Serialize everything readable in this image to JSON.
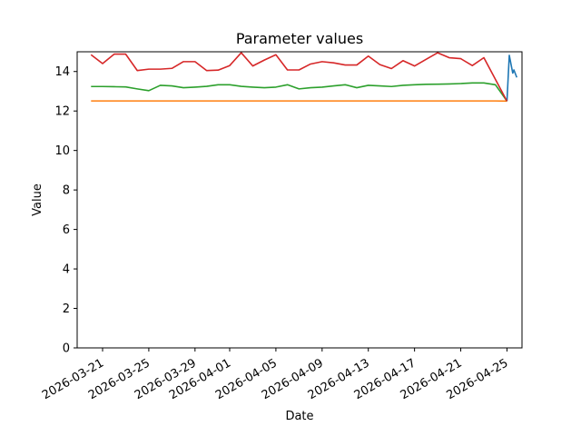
{
  "chart_data": {
    "type": "line",
    "title": "Parameter values",
    "xlabel": "Date",
    "ylabel": "Value",
    "grid": false,
    "legend": null,
    "ylim": [
      0,
      15.0
    ],
    "xlim_days_from_first_tick": [
      -2.2,
      36.3
    ],
    "y_ticks": [
      0,
      2,
      4,
      6,
      8,
      10,
      12,
      14
    ],
    "x_tick_labels": [
      "2026-03-21",
      "2026-03-25",
      "2026-03-29",
      "2026-04-01",
      "2026-04-05",
      "2026-04-09",
      "2026-04-13",
      "2026-04-17",
      "2026-04-21",
      "2026-04-25"
    ],
    "x_dates": [
      "2026-03-20",
      "2026-03-21",
      "2026-03-22",
      "2026-03-23",
      "2026-03-24",
      "2026-03-25",
      "2026-03-26",
      "2026-03-27",
      "2026-03-28",
      "2026-03-29",
      "2026-03-30",
      "2026-03-31",
      "2026-04-01",
      "2026-04-02",
      "2026-04-03",
      "2026-04-04",
      "2026-04-05",
      "2026-04-06",
      "2026-04-07",
      "2026-04-08",
      "2026-04-09",
      "2026-04-10",
      "2026-04-11",
      "2026-04-12",
      "2026-04-13",
      "2026-04-14",
      "2026-04-15",
      "2026-04-16",
      "2026-04-17",
      "2026-04-18",
      "2026-04-19",
      "2026-04-20",
      "2026-04-21",
      "2026-04-22",
      "2026-04-23",
      "2026-04-24",
      "2026-04-25"
    ],
    "series": [
      {
        "name": "blue",
        "color": "#1f77b4",
        "points": [
          [
            "2026-04-25T00:00",
            12.5
          ],
          [
            "2026-04-25T04:48",
            14.82
          ],
          [
            "2026-04-25T12:00",
            13.92
          ],
          [
            "2026-04-25T14:24",
            14.08
          ],
          [
            "2026-04-25T20:24",
            13.7
          ]
        ]
      },
      {
        "name": "orange",
        "color": "#ff7f0e",
        "values": [
          12.51,
          12.51,
          12.51,
          12.51,
          12.51,
          12.51,
          12.51,
          12.51,
          12.51,
          12.51,
          12.51,
          12.51,
          12.51,
          12.51,
          12.51,
          12.51,
          12.51,
          12.51,
          12.51,
          12.51,
          12.51,
          12.51,
          12.51,
          12.51,
          12.51,
          12.51,
          12.51,
          12.51,
          12.51,
          12.51,
          12.51,
          12.51,
          12.51,
          12.51,
          12.51,
          12.51,
          12.5
        ]
      },
      {
        "name": "green",
        "color": "#2ca02c",
        "values": [
          13.24,
          13.24,
          13.23,
          13.22,
          13.12,
          13.03,
          13.3,
          13.27,
          13.18,
          13.21,
          13.25,
          13.33,
          13.33,
          13.25,
          13.21,
          13.18,
          13.21,
          13.33,
          13.12,
          13.18,
          13.21,
          13.27,
          13.33,
          13.18,
          13.3,
          13.27,
          13.24,
          13.3,
          13.33,
          13.35,
          13.36,
          13.37,
          13.39,
          13.42,
          13.42,
          13.33,
          12.5
        ]
      },
      {
        "name": "red",
        "color": "#d62728",
        "values": [
          14.85,
          14.4,
          14.88,
          14.88,
          14.05,
          14.12,
          14.12,
          14.16,
          14.5,
          14.5,
          14.05,
          14.07,
          14.3,
          14.95,
          14.28,
          14.58,
          14.85,
          14.08,
          14.08,
          14.38,
          14.5,
          14.44,
          14.33,
          14.33,
          14.78,
          14.35,
          14.15,
          14.55,
          14.28,
          14.62,
          14.95,
          14.7,
          14.65,
          14.3,
          14.7,
          13.6,
          12.5
        ]
      }
    ]
  }
}
